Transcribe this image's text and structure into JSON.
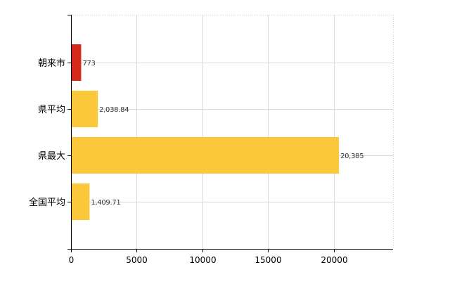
{
  "chart_data": {
    "type": "bar",
    "orientation": "horizontal",
    "categories": [
      "朝来市",
      "県平均",
      "県最大",
      "全国平均"
    ],
    "values": [
      773,
      2038.84,
      20385,
      1409.71
    ],
    "data_labels": [
      "773",
      "2,038.84",
      "20,385",
      "1,409.71"
    ],
    "bar_colors": [
      "#d42a1c",
      "#fbc83c",
      "#fbc83c",
      "#fbc83c"
    ],
    "x_ticks": [
      0,
      5000,
      10000,
      15000,
      20000
    ],
    "x_tick_labels": [
      "0",
      "5000",
      "10000",
      "15000",
      "20000"
    ],
    "xlim": [
      0,
      24500
    ],
    "grid": true,
    "title": "",
    "xlabel": "",
    "ylabel": ""
  }
}
